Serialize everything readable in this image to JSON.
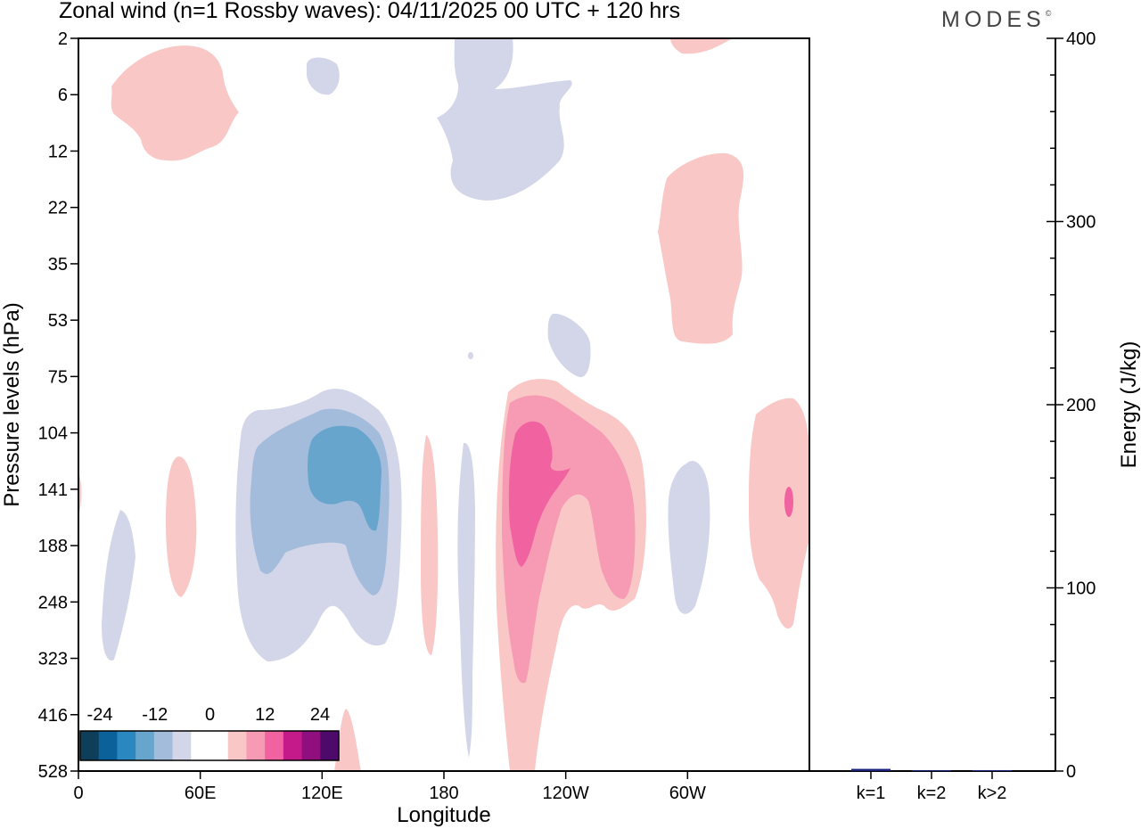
{
  "header": {
    "title": "Zonal wind (n=1 Rossby waves):  04/11/2025  00 UTC  + 120 hrs",
    "brand": "MODES",
    "brand_mark": "©"
  },
  "chart_data": [
    {
      "type": "heatmap",
      "title": "Zonal wind (n=1 Rossby waves):  04/11/2025  00 UTC  + 120 hrs",
      "xlabel": "Longitude",
      "ylabel": "Pressure levels (hPa)",
      "x_ticks": [
        "0",
        "60E",
        "120E",
        "180",
        "120W",
        "60W"
      ],
      "y_ticks": [
        "2",
        "6",
        "12",
        "22",
        "35",
        "53",
        "75",
        "104",
        "141",
        "188",
        "248",
        "323",
        "416",
        "528"
      ],
      "colorbar": {
        "tick_labels": [
          "-24",
          "-12",
          "0",
          "12",
          "24"
        ],
        "colors": [
          "#0e3e5a",
          "#0b629a",
          "#2b87c0",
          "#67a5cc",
          "#a4bcdb",
          "#d3d6e8",
          "#ffffff",
          "#ffffff",
          "#f9c8c6",
          "#f79ab4",
          "#f062a0",
          "#c51b8a",
          "#8e0f7d",
          "#4d0a6a"
        ]
      },
      "contours": [
        {
          "name": "contour-positive-strat-west",
          "level": "light-pink"
        },
        {
          "name": "contour-negative-strat-small",
          "level": "light-lavender"
        },
        {
          "name": "contour-negative-strat-dateline",
          "level": "light-lavender"
        },
        {
          "name": "contour-positive-strat-100w",
          "level": "light-pink"
        },
        {
          "name": "contour-negative-53hpa",
          "level": "light-lavender"
        },
        {
          "name": "contour-negative-trop-120e",
          "level": "lavender"
        },
        {
          "name": "contour-negative-trop-120e-mid",
          "level": "light-blue"
        },
        {
          "name": "contour-negative-trop-120e-core",
          "level": "blue"
        },
        {
          "name": "contour-positive-trop-140w",
          "level": "light-pink"
        },
        {
          "name": "contour-positive-trop-140w-mid",
          "level": "pink"
        },
        {
          "name": "contour-positive-trop-140w-core",
          "level": "magenta"
        }
      ]
    },
    {
      "type": "bar",
      "categories": [
        "k=1",
        "k=2",
        "k>2"
      ],
      "values": [
        1.2,
        0.4,
        0.5
      ],
      "ylabel": "Energy (J/kg)",
      "ylim": [
        0,
        400
      ],
      "y_ticks": [
        "0",
        "100",
        "200",
        "300",
        "400"
      ],
      "bar_color": "#1a237e"
    }
  ]
}
